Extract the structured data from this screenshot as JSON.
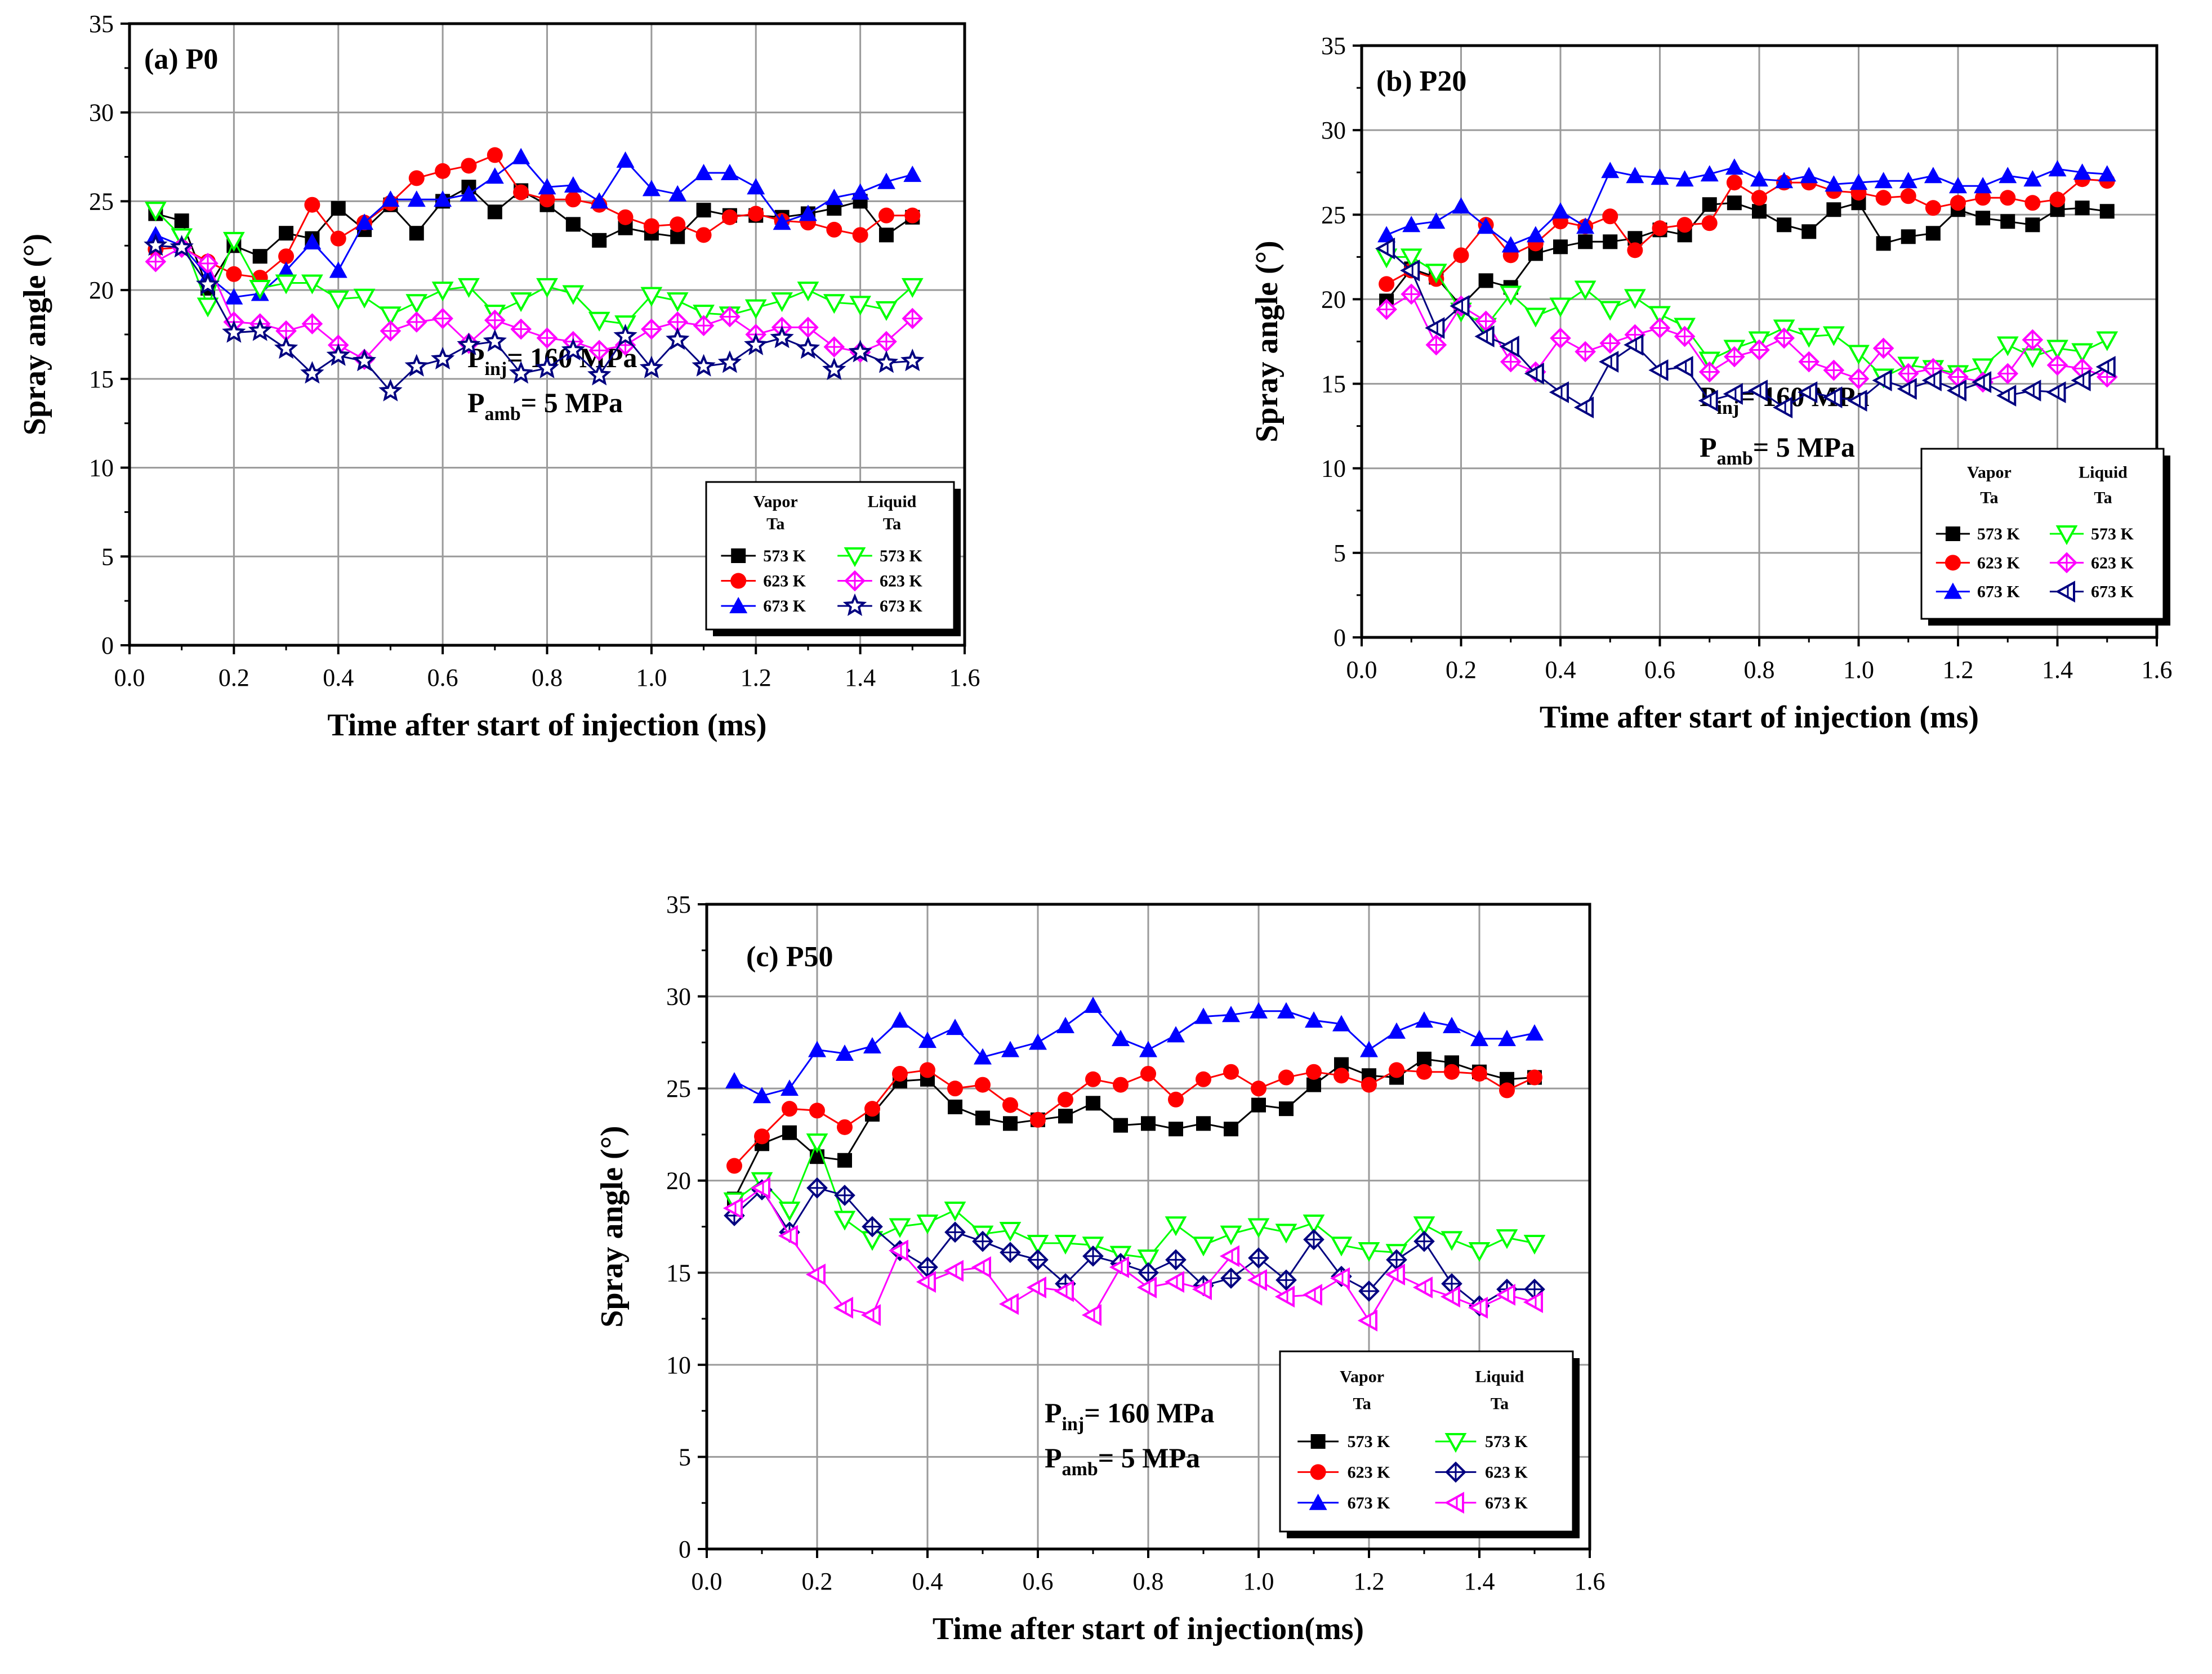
{
  "chart_data": [
    {
      "type": "line",
      "title": "(a) P0",
      "xlabel": "Time after start of injection (ms)",
      "ylabel": "Spray angle (°)",
      "xlim": [
        0.0,
        1.6
      ],
      "ylim": [
        0,
        35
      ],
      "xticks": [
        "0.0",
        "0.2",
        "0.4",
        "0.6",
        "0.8",
        "1.0",
        "1.2",
        "1.4",
        "1.6"
      ],
      "yticks": [
        "0",
        "5",
        "10",
        "15",
        "20",
        "25",
        "30",
        "35"
      ],
      "grid": true,
      "legend_position": "bottom-right",
      "legend_header_vapor": "Vapor",
      "legend_header_liquid": "Liquid",
      "legend_header_ta": "Ta",
      "condition_inj_main": "P",
      "condition_inj_sub": "inj",
      "condition_inj_value": "= 160 MPa",
      "condition_amb_main": "P",
      "condition_amb_sub": "amb",
      "condition_amb_value": "= 5 MPa",
      "x": [
        0.05,
        0.1,
        0.15,
        0.2,
        0.25,
        0.3,
        0.35,
        0.4,
        0.45,
        0.5,
        0.55,
        0.6,
        0.65,
        0.7,
        0.75,
        0.8,
        0.85,
        0.9,
        0.95,
        1.0,
        1.05,
        1.1,
        1.15,
        1.2,
        1.25,
        1.3,
        1.35,
        1.4,
        1.45,
        1.5
      ],
      "series": [
        {
          "name": "573 K",
          "group": "vapor",
          "color": "#000000",
          "marker": "square",
          "values": [
            24.3,
            23.9,
            20.1,
            22.5,
            21.9,
            23.2,
            22.9,
            24.6,
            23.4,
            24.8,
            23.2,
            25.0,
            25.8,
            24.4,
            25.6,
            24.8,
            23.7,
            22.8,
            23.5,
            23.2,
            23.0,
            24.5,
            24.2,
            24.2,
            24.1,
            24.3,
            24.6,
            25.0,
            23.1,
            24.1
          ]
        },
        {
          "name": "623 K",
          "group": "vapor",
          "color": "#ff0000",
          "marker": "circle",
          "values": [
            22.3,
            22.4,
            21.6,
            20.9,
            20.7,
            21.9,
            24.8,
            22.9,
            23.8,
            24.9,
            26.3,
            26.7,
            27.0,
            27.6,
            25.5,
            25.1,
            25.1,
            24.8,
            24.1,
            23.6,
            23.7,
            23.1,
            24.1,
            24.3,
            23.9,
            23.8,
            23.4,
            23.1,
            24.2,
            24.2
          ]
        },
        {
          "name": "673 K",
          "group": "vapor",
          "color": "#0000ff",
          "marker": "triangle",
          "values": [
            23.1,
            22.5,
            20.8,
            19.6,
            19.8,
            21.1,
            22.7,
            21.1,
            23.8,
            25.1,
            25.1,
            25.1,
            25.4,
            26.4,
            27.5,
            25.8,
            25.9,
            25.0,
            27.3,
            25.7,
            25.4,
            26.6,
            26.6,
            25.8,
            23.8,
            24.3,
            25.2,
            25.5,
            26.1,
            26.5
          ]
        },
        {
          "name": "573 K",
          "group": "liquid",
          "color": "#00ff00",
          "marker": "triangle-down-open",
          "values": [
            24.5,
            23.0,
            19.1,
            22.8,
            20.1,
            20.4,
            20.4,
            19.5,
            19.6,
            18.6,
            19.3,
            20.0,
            20.2,
            18.7,
            19.4,
            20.2,
            19.8,
            18.3,
            18.1,
            19.7,
            19.4,
            18.7,
            18.6,
            19.0,
            19.4,
            20.0,
            19.3,
            19.2,
            18.9,
            20.2
          ]
        },
        {
          "name": "623 K",
          "group": "liquid",
          "color": "#ff00ff",
          "marker": "diamond-cross-open",
          "values": [
            21.6,
            22.4,
            21.5,
            18.2,
            18.1,
            17.7,
            18.1,
            16.9,
            16.1,
            17.7,
            18.2,
            18.4,
            17.0,
            18.3,
            17.8,
            17.3,
            17.1,
            16.6,
            16.9,
            17.8,
            18.2,
            18.0,
            18.5,
            17.5,
            17.9,
            17.9,
            16.8,
            16.5,
            17.1,
            18.4
          ]
        },
        {
          "name": "673 K",
          "group": "liquid",
          "color": "#000080",
          "marker": "star-open",
          "values": [
            22.5,
            22.4,
            20.3,
            17.6,
            17.7,
            16.7,
            15.3,
            16.3,
            16.0,
            14.3,
            15.7,
            16.1,
            16.9,
            17.1,
            15.3,
            15.6,
            16.6,
            15.2,
            17.4,
            15.6,
            17.2,
            15.7,
            15.9,
            16.9,
            17.3,
            16.7,
            15.5,
            16.5,
            15.9,
            16.0
          ]
        }
      ]
    },
    {
      "type": "line",
      "title": "(b) P20",
      "xlabel": "Time after start of injection (ms)",
      "ylabel": "Spray angle (°)",
      "xlim": [
        0.0,
        1.6
      ],
      "ylim": [
        0,
        35
      ],
      "xticks": [
        "0.0",
        "0.2",
        "0.4",
        "0.6",
        "0.8",
        "1.0",
        "1.2",
        "1.4",
        "1.6"
      ],
      "yticks": [
        "0",
        "5",
        "10",
        "15",
        "20",
        "25",
        "30",
        "35"
      ],
      "grid": true,
      "legend_position": "bottom-right",
      "legend_header_vapor": "Vapor",
      "legend_header_liquid": "Liquid",
      "legend_header_ta": "Ta",
      "condition_inj_main": "P",
      "condition_inj_sub": "inj",
      "condition_inj_value": "= 160 MPa",
      "condition_amb_main": "P",
      "condition_amb_sub": "amb",
      "condition_amb_value": "= 5 MPa",
      "x": [
        0.05,
        0.1,
        0.15,
        0.2,
        0.25,
        0.3,
        0.35,
        0.4,
        0.45,
        0.5,
        0.55,
        0.6,
        0.65,
        0.7,
        0.75,
        0.8,
        0.85,
        0.9,
        0.95,
        1.0,
        1.05,
        1.1,
        1.15,
        1.2,
        1.25,
        1.3,
        1.35,
        1.4,
        1.45,
        1.5
      ],
      "series": [
        {
          "name": "573 K",
          "group": "vapor",
          "color": "#000000",
          "marker": "square",
          "values": [
            19.9,
            21.8,
            21.3,
            19.6,
            21.1,
            20.7,
            22.7,
            23.1,
            23.4,
            23.4,
            23.6,
            24.1,
            23.8,
            25.6,
            25.7,
            25.2,
            24.4,
            24.0,
            25.3,
            25.7,
            23.3,
            23.7,
            23.9,
            25.3,
            24.8,
            24.6,
            24.4,
            25.3,
            25.4,
            25.2
          ]
        },
        {
          "name": "623 K",
          "group": "vapor",
          "color": "#ff0000",
          "marker": "circle",
          "values": [
            20.9,
            21.7,
            21.2,
            22.6,
            24.4,
            22.6,
            23.3,
            24.6,
            24.3,
            24.9,
            22.9,
            24.2,
            24.4,
            24.5,
            26.9,
            26.0,
            26.9,
            26.9,
            26.4,
            26.3,
            26.0,
            26.1,
            25.4,
            25.7,
            26.0,
            26.0,
            25.7,
            25.9,
            27.1,
            27.0
          ]
        },
        {
          "name": "673 K",
          "group": "vapor",
          "color": "#0000ff",
          "marker": "triangle",
          "values": [
            23.8,
            24.4,
            24.6,
            25.5,
            24.3,
            23.2,
            23.8,
            25.2,
            24.3,
            27.6,
            27.3,
            27.2,
            27.1,
            27.4,
            27.8,
            27.1,
            27.0,
            27.3,
            26.8,
            26.9,
            27.0,
            27.0,
            27.3,
            26.7,
            26.7,
            27.3,
            27.1,
            27.7,
            27.5,
            27.4
          ]
        },
        {
          "name": "573 K",
          "group": "liquid",
          "color": "#00ff00",
          "marker": "triangle-down-open",
          "values": [
            22.5,
            22.5,
            21.6,
            19.3,
            18.4,
            20.3,
            19.0,
            19.6,
            20.6,
            19.4,
            20.1,
            19.1,
            18.4,
            16.4,
            17.1,
            17.6,
            18.3,
            17.8,
            17.9,
            16.8,
            15.4,
            16.1,
            15.9,
            15.6,
            16.0,
            17.3,
            16.6,
            17.1,
            16.9,
            17.6
          ]
        },
        {
          "name": "623 K",
          "group": "liquid",
          "color": "#ff00ff",
          "marker": "diamond-cross-open",
          "values": [
            19.4,
            20.3,
            17.3,
            19.6,
            18.7,
            16.3,
            15.7,
            17.7,
            16.9,
            17.4,
            17.9,
            18.3,
            17.8,
            15.7,
            16.6,
            17.0,
            17.7,
            16.3,
            15.8,
            15.3,
            17.1,
            15.6,
            15.9,
            15.4,
            15.1,
            15.6,
            17.6,
            16.1,
            15.9,
            15.4
          ]
        },
        {
          "name": "673 K",
          "group": "liquid",
          "color": "#000080",
          "marker": "triangle-left-open",
          "values": [
            23.0,
            21.7,
            18.3,
            19.6,
            17.8,
            17.2,
            15.6,
            14.5,
            13.6,
            16.3,
            17.3,
            15.8,
            16.0,
            14.0,
            14.4,
            14.6,
            13.6,
            14.5,
            14.2,
            14.0,
            15.2,
            14.7,
            15.2,
            14.6,
            15.1,
            14.3,
            14.6,
            14.5,
            15.2,
            16.0
          ]
        }
      ]
    },
    {
      "type": "line",
      "title": "(c) P50",
      "xlabel": "Time after start of injection(ms)",
      "ylabel": "Spray angle (°)",
      "xlim": [
        0.0,
        1.6
      ],
      "ylim": [
        0,
        35
      ],
      "xticks": [
        "0.0",
        "0.2",
        "0.4",
        "0.6",
        "0.8",
        "1.0",
        "1.2",
        "1.4",
        "1.6"
      ],
      "yticks": [
        "0",
        "5",
        "10",
        "15",
        "20",
        "25",
        "30",
        "35"
      ],
      "grid": true,
      "legend_position": "bottom-right",
      "legend_header_vapor": "Vapor",
      "legend_header_liquid": "Liquid",
      "legend_header_ta": "Ta",
      "condition_inj_main": "P",
      "condition_inj_sub": "inj",
      "condition_inj_value": "= 160 MPa",
      "condition_amb_main": "P",
      "condition_amb_sub": "amb",
      "condition_amb_value": "= 5 MPa",
      "x": [
        0.05,
        0.1,
        0.15,
        0.2,
        0.25,
        0.3,
        0.35,
        0.4,
        0.45,
        0.5,
        0.55,
        0.6,
        0.65,
        0.7,
        0.75,
        0.8,
        0.85,
        0.9,
        0.95,
        1.0,
        1.05,
        1.1,
        1.15,
        1.2,
        1.25,
        1.3,
        1.35,
        1.4,
        1.45,
        1.5
      ],
      "series": [
        {
          "name": "573 K",
          "group": "vapor",
          "color": "#000000",
          "marker": "square",
          "values": [
            19.0,
            22.0,
            22.6,
            21.3,
            21.1,
            23.6,
            25.4,
            25.5,
            24.0,
            23.4,
            23.1,
            23.3,
            23.5,
            24.2,
            23.0,
            23.1,
            22.8,
            23.1,
            22.8,
            24.1,
            23.9,
            25.2,
            26.3,
            25.7,
            25.6,
            26.6,
            26.4,
            25.9,
            25.5,
            25.6
          ]
        },
        {
          "name": "623 K",
          "group": "vapor",
          "color": "#ff0000",
          "marker": "circle",
          "values": [
            20.8,
            22.4,
            23.9,
            23.8,
            22.9,
            23.9,
            25.8,
            26.0,
            25.0,
            25.2,
            24.1,
            23.3,
            24.4,
            25.5,
            25.2,
            25.8,
            24.4,
            25.5,
            25.9,
            25.0,
            25.6,
            25.9,
            25.7,
            25.2,
            26.0,
            25.9,
            25.9,
            25.8,
            24.9,
            25.6
          ]
        },
        {
          "name": "673 K",
          "group": "vapor",
          "color": "#0000ff",
          "marker": "triangle",
          "values": [
            25.4,
            24.6,
            25.0,
            27.1,
            26.9,
            27.3,
            28.7,
            27.6,
            28.3,
            26.7,
            27.1,
            27.5,
            28.4,
            29.5,
            27.7,
            27.1,
            27.9,
            28.9,
            29.0,
            29.2,
            29.2,
            28.7,
            28.5,
            27.1,
            28.1,
            28.7,
            28.4,
            27.7,
            27.7,
            28.0
          ]
        },
        {
          "name": "573 K",
          "group": "liquid",
          "color": "#00ff00",
          "marker": "triangle-down-open",
          "values": [
            18.9,
            20.0,
            18.4,
            22.1,
            17.9,
            16.8,
            17.5,
            17.7,
            18.4,
            17.1,
            17.3,
            16.6,
            16.6,
            16.5,
            16.0,
            15.8,
            17.6,
            16.5,
            17.1,
            17.5,
            17.2,
            17.7,
            16.5,
            16.2,
            16.1,
            17.6,
            16.8,
            16.2,
            16.9,
            16.6
          ]
        },
        {
          "name": "623 K",
          "group": "liquid",
          "color": "#000080",
          "marker": "diamond-cross-open",
          "values": [
            18.1,
            19.5,
            17.2,
            19.6,
            19.2,
            17.5,
            16.2,
            15.3,
            17.2,
            16.7,
            16.1,
            15.7,
            14.4,
            15.9,
            15.5,
            15.0,
            15.7,
            14.3,
            14.7,
            15.8,
            14.6,
            16.8,
            14.8,
            14.0,
            15.7,
            16.7,
            14.4,
            13.2,
            14.1,
            14.1
          ]
        },
        {
          "name": "673 K",
          "group": "liquid",
          "color": "#ff00ff",
          "marker": "triangle-left-open",
          "values": [
            18.5,
            19.6,
            17.0,
            14.9,
            13.1,
            12.7,
            16.2,
            14.5,
            15.1,
            15.3,
            13.3,
            14.2,
            14.0,
            12.7,
            15.3,
            14.2,
            14.5,
            14.1,
            15.9,
            14.6,
            13.7,
            13.8,
            14.7,
            12.4,
            14.9,
            14.2,
            13.7,
            13.1,
            13.8,
            13.4
          ]
        }
      ]
    }
  ]
}
